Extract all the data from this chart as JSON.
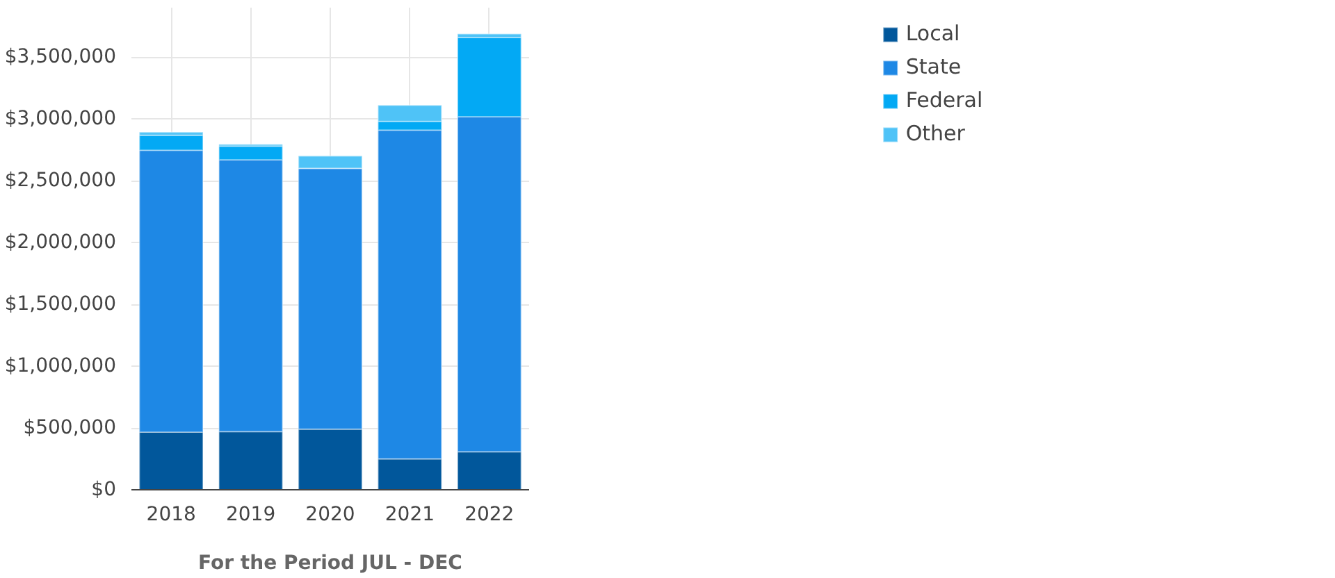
{
  "chart_data": {
    "type": "bar",
    "stacked": true,
    "xlabel": "For the Period JUL - DEC",
    "categories": [
      "2018",
      "2019",
      "2020",
      "2021",
      "2022"
    ],
    "series": [
      {
        "name": "Local",
        "color": "#01579b",
        "values": [
          467000,
          470000,
          490000,
          250000,
          308000
        ]
      },
      {
        "name": "State",
        "color": "#1e88e5",
        "values": [
          2280000,
          2200000,
          2110000,
          2660000,
          2710000
        ]
      },
      {
        "name": "Federal",
        "color": "#03a9f4",
        "values": [
          120000,
          110000,
          0,
          70000,
          640000
        ]
      },
      {
        "name": "Other",
        "color": "#4fc3f7",
        "values": [
          25000,
          15000,
          100000,
          130000,
          30000
        ]
      }
    ],
    "ylim": [
      0,
      3900000
    ],
    "yticks": [
      {
        "value": 0,
        "label": "$0"
      },
      {
        "value": 500000,
        "label": "$500,000"
      },
      {
        "value": 1000000,
        "label": "$1,000,000"
      },
      {
        "value": 1500000,
        "label": "$1,500,000"
      },
      {
        "value": 2000000,
        "label": "$2,000,000"
      },
      {
        "value": 2500000,
        "label": "$2,500,000"
      },
      {
        "value": 3000000,
        "label": "$3,000,000"
      },
      {
        "value": 3500000,
        "label": "$3,500,000"
      }
    ],
    "grid": true,
    "legend": "top right"
  }
}
